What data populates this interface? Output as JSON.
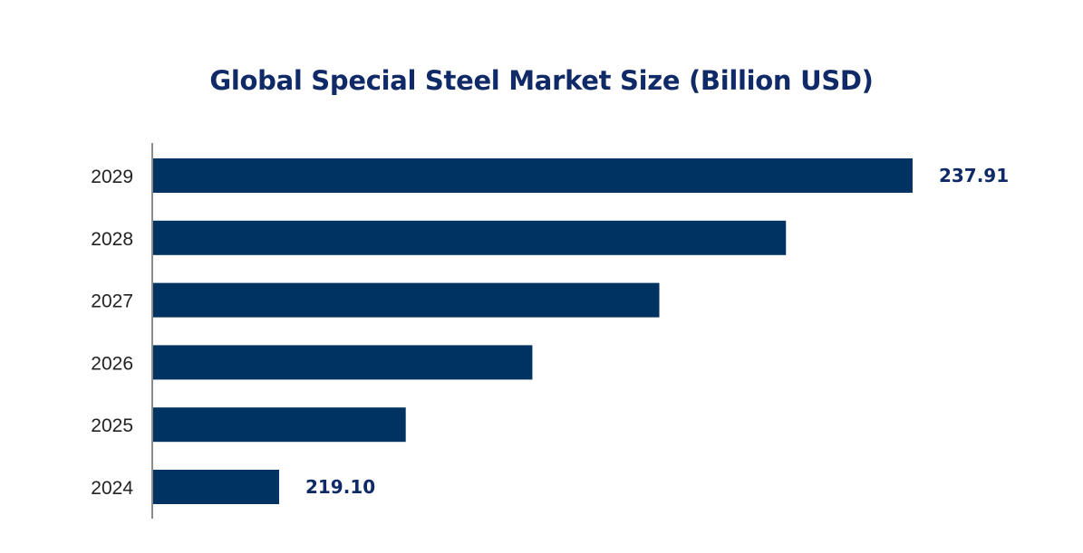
{
  "chart_data": {
    "type": "bar",
    "orientation": "horizontal",
    "title": "Global Special Steel Market Size (Billion USD)",
    "categories": [
      "2024",
      "2025",
      "2026",
      "2027",
      "2028",
      "2029"
    ],
    "values": [
      219.1,
      222.86,
      226.62,
      230.39,
      234.15,
      237.91
    ],
    "data_labels": [
      "219.10",
      null,
      null,
      null,
      null,
      "237.91"
    ],
    "xlabel": "",
    "ylabel": "",
    "xlim": [
      215.36,
      240
    ],
    "grid": false,
    "legend": "none",
    "bar_color": "#003361",
    "label_color": "#0f2a66"
  }
}
